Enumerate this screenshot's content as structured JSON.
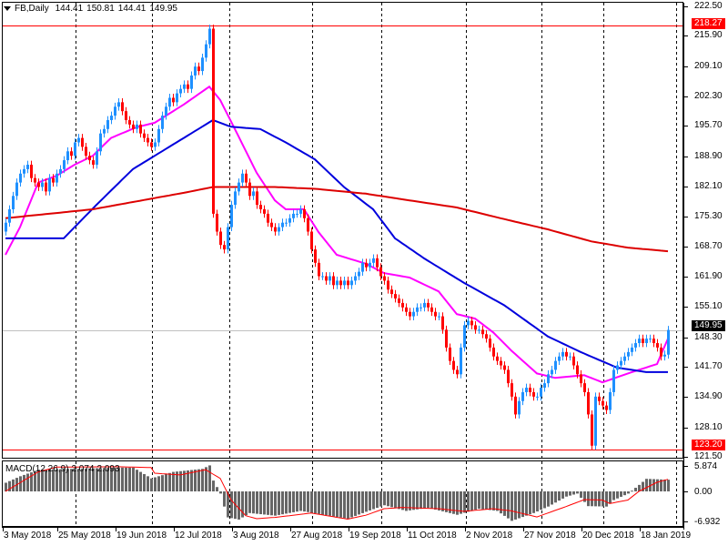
{
  "header": {
    "symbol": "FB,Daily",
    "open": "144.41",
    "high": "150.81",
    "low": "144.41",
    "close": "149.95"
  },
  "macd_label": {
    "name": "MACD(12,26,9)",
    "main": "2.074",
    "signal": "2.093"
  },
  "price_tags": {
    "upper_line": "218.27",
    "current": "149.95",
    "lower_line": "123.20"
  },
  "colors": {
    "bull": "#1E90FF",
    "bear": "#FF0000",
    "ma_fast": "#FF00FF",
    "ma_mid": "#0000DD",
    "ma_slow": "#DD0000",
    "hline": "#FF0000",
    "histogram": "#666666",
    "signal": "#FF0000"
  },
  "chart_data": {
    "type": "candlestick",
    "title": "FB,Daily",
    "price_range": [
      121.5,
      222.5
    ],
    "y_ticks": [
      "222.50",
      "215.90",
      "209.10",
      "202.30",
      "195.70",
      "188.90",
      "182.10",
      "175.30",
      "168.70",
      "161.90",
      "155.10",
      "148.30",
      "141.70",
      "134.90",
      "128.10",
      "121.50"
    ],
    "x_labels": [
      {
        "bar": 0,
        "label": "3 May 2018"
      },
      {
        "bar": 15,
        "label": "25 May 2018"
      },
      {
        "bar": 31,
        "label": "19 Jun 2018"
      },
      {
        "bar": 47,
        "label": "12 Jul 2018"
      },
      {
        "bar": 63,
        "label": "3 Aug 2018"
      },
      {
        "bar": 79,
        "label": "27 Aug 2018"
      },
      {
        "bar": 95,
        "label": "19 Sep 2018"
      },
      {
        "bar": 111,
        "label": "11 Oct 2018"
      },
      {
        "bar": 127,
        "label": "2 Nov 2018"
      },
      {
        "bar": 143,
        "label": "27 Nov 2018"
      },
      {
        "bar": 159,
        "label": "20 Dec 2018"
      },
      {
        "bar": 175,
        "label": "18 Jan 2019"
      }
    ],
    "first_open": 172,
    "closes": [
      174,
      177,
      180,
      183,
      185,
      186,
      187,
      184,
      183,
      182,
      183,
      181,
      184,
      183,
      185,
      186,
      188,
      190,
      189,
      192,
      193,
      191,
      189,
      188,
      187,
      190,
      194,
      195,
      197,
      198,
      200,
      201,
      199,
      197,
      196,
      195,
      196,
      194,
      193,
      192,
      191,
      192,
      195,
      198,
      200,
      202,
      201,
      203,
      204,
      205,
      204,
      207,
      209,
      208,
      211,
      214,
      217.5,
      176,
      172,
      169,
      168,
      173,
      178,
      181,
      183,
      185,
      183,
      180,
      181,
      178,
      177,
      176,
      174,
      173,
      172,
      173,
      174,
      174,
      175,
      176,
      176,
      177,
      175,
      172,
      168,
      165,
      162,
      162,
      161,
      162,
      160,
      161,
      160,
      161,
      160,
      161,
      162,
      163,
      165,
      164,
      165,
      166,
      164,
      162,
      161,
      159,
      158,
      157,
      156,
      155,
      154,
      153,
      154,
      155,
      155,
      156,
      155,
      154,
      153,
      153,
      150,
      146,
      143,
      141,
      140,
      146,
      151,
      152,
      151,
      150,
      150,
      149,
      148,
      146,
      144,
      143,
      142,
      141,
      138,
      135,
      131,
      134,
      136,
      137,
      136,
      135,
      135,
      137,
      138,
      140,
      141,
      143,
      144,
      145,
      144,
      144,
      142,
      140,
      138,
      136,
      131,
      124,
      135,
      134,
      133,
      132,
      136,
      141,
      142,
      143,
      144,
      145,
      146,
      147,
      148,
      147,
      148,
      148,
      147,
      146,
      144,
      144.41,
      149.95
    ],
    "horizontal_lines": [
      218.27,
      123.2
    ],
    "moving_averages": [
      {
        "name": "MA fast",
        "points": [
          [
            0,
            166.8
          ],
          [
            4,
            173
          ],
          [
            9,
            183
          ],
          [
            14,
            184.5
          ],
          [
            19,
            187
          ],
          [
            24,
            189
          ],
          [
            29,
            193
          ],
          [
            36,
            195.4
          ],
          [
            41,
            196.4
          ],
          [
            49,
            200.5
          ],
          [
            56,
            204.5
          ],
          [
            59,
            201.5
          ],
          [
            64,
            193.4
          ],
          [
            69,
            185.2
          ],
          [
            74,
            179
          ],
          [
            77,
            177
          ],
          [
            82,
            177
          ],
          [
            86,
            171.9
          ],
          [
            91,
            166.8
          ],
          [
            99,
            164.8
          ],
          [
            104,
            162.7
          ],
          [
            111,
            161.7
          ],
          [
            119,
            158.6
          ],
          [
            124,
            153.5
          ],
          [
            129,
            152.5
          ],
          [
            134,
            149.4
          ],
          [
            139,
            145.3
          ],
          [
            146,
            140.2
          ],
          [
            151,
            139.2
          ],
          [
            159,
            139.8
          ],
          [
            164,
            138.2
          ],
          [
            171,
            140.2
          ],
          [
            179,
            142.3
          ],
          [
            182,
            148
          ]
        ]
      },
      {
        "name": "MA mid",
        "points": [
          [
            0,
            170.5
          ],
          [
            16,
            170.5
          ],
          [
            25,
            178
          ],
          [
            35,
            186
          ],
          [
            45,
            191
          ],
          [
            57,
            197
          ],
          [
            62,
            195.5
          ],
          [
            70,
            195
          ],
          [
            77,
            192
          ],
          [
            85,
            188.2
          ],
          [
            93,
            182
          ],
          [
            101,
            177
          ],
          [
            107,
            170.5
          ],
          [
            115,
            166
          ],
          [
            126,
            160.5
          ],
          [
            137,
            155.5
          ],
          [
            149,
            148.5
          ],
          [
            158,
            145
          ],
          [
            168,
            141.5
          ],
          [
            176,
            140.5
          ],
          [
            182,
            140.5
          ]
        ]
      },
      {
        "name": "MA slow",
        "points": [
          [
            0,
            175
          ],
          [
            24,
            177
          ],
          [
            49,
            180.7
          ],
          [
            57,
            182
          ],
          [
            74,
            182
          ],
          [
            85,
            181.6
          ],
          [
            99,
            180.5
          ],
          [
            111,
            179
          ],
          [
            124,
            177.4
          ],
          [
            136,
            175
          ],
          [
            149,
            172.5
          ],
          [
            161,
            169.8
          ],
          [
            171,
            168.4
          ],
          [
            182,
            167.6
          ]
        ]
      }
    ],
    "macd": {
      "range": [
        -6.932,
        5.874
      ],
      "y_ticks": [
        "5.874",
        "0.00",
        "-6.932"
      ],
      "histogram_points": [
        [
          0,
          2
        ],
        [
          4,
          3.5
        ],
        [
          9,
          5
        ],
        [
          31,
          5.5
        ],
        [
          35,
          5.5
        ],
        [
          37,
          4.5
        ],
        [
          40,
          3
        ],
        [
          42,
          3.5
        ],
        [
          46,
          4.5
        ],
        [
          54,
          5.2
        ],
        [
          56,
          6
        ],
        [
          57,
          2.5
        ],
        [
          59,
          -0.5
        ],
        [
          60,
          -3.5
        ],
        [
          61,
          -6
        ],
        [
          64,
          -6.5
        ],
        [
          67,
          -5
        ],
        [
          74,
          -5.6
        ],
        [
          81,
          -4.5
        ],
        [
          88,
          -5.5
        ],
        [
          94,
          -6.3
        ],
        [
          99,
          -4.7
        ],
        [
          104,
          -3.2
        ],
        [
          110,
          -4.5
        ],
        [
          116,
          -3.8
        ],
        [
          124,
          -5.4
        ],
        [
          130,
          -4
        ],
        [
          135,
          -4.5
        ],
        [
          139,
          -6.8
        ],
        [
          145,
          -5
        ],
        [
          149,
          -3.5
        ],
        [
          154,
          -1.2
        ],
        [
          157,
          -0.5
        ],
        [
          160,
          -3.4
        ],
        [
          165,
          -3.5
        ],
        [
          167,
          -2
        ],
        [
          171,
          -0.5
        ],
        [
          174,
          1.5
        ],
        [
          176,
          2.9
        ],
        [
          182,
          2.7
        ]
      ],
      "signal_points": [
        [
          0,
          0
        ],
        [
          9,
          4.5
        ],
        [
          14,
          5.6
        ],
        [
          31,
          5.7
        ],
        [
          40,
          5.5
        ],
        [
          41,
          4.2
        ],
        [
          48,
          3.8
        ],
        [
          55,
          5
        ],
        [
          59,
          3
        ],
        [
          62,
          -2
        ],
        [
          66,
          -5.6
        ],
        [
          69,
          -6.3
        ],
        [
          74,
          -6
        ],
        [
          84,
          -5
        ],
        [
          94,
          -6.4
        ],
        [
          99,
          -5.5
        ],
        [
          104,
          -4
        ],
        [
          109,
          -3.7
        ],
        [
          119,
          -4
        ],
        [
          126,
          -4.6
        ],
        [
          134,
          -4
        ],
        [
          139,
          -4.5
        ],
        [
          146,
          -5.9
        ],
        [
          154,
          -3.5
        ],
        [
          159,
          -1.9
        ],
        [
          164,
          -2
        ],
        [
          166,
          -2.8
        ],
        [
          171,
          -2
        ],
        [
          174,
          0
        ],
        [
          179,
          2.1
        ],
        [
          182,
          2.8
        ]
      ]
    }
  }
}
